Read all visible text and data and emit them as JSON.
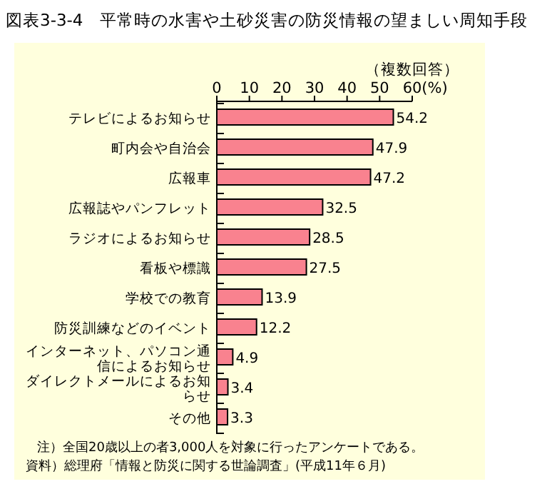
{
  "chart_data": {
    "type": "bar",
    "orientation": "horizontal",
    "title": "図表3-3-4　平常時の水害や土砂災害の防災情報の望ましい周知手段",
    "subtitle": "（複数回答）",
    "categories": [
      "テレビによるお知らせ",
      "町内会や自治会",
      "広報車",
      "広報誌やパンフレット",
      "ラジオによるお知らせ",
      "看板や標識",
      "学校での教育",
      "防災訓練などのイベント",
      "インターネット、パソコン通信によるお知らせ",
      "ダイレクトメールによるお知らせ",
      "その他"
    ],
    "values": [
      54.2,
      47.9,
      47.2,
      32.5,
      28.5,
      27.5,
      13.9,
      12.2,
      4.9,
      3.4,
      3.3
    ],
    "color": "#f9828f",
    "xlim": [
      0,
      60
    ],
    "xticks": [
      0,
      10,
      20,
      30,
      40,
      50,
      {
        "value": 60,
        "label": "60(%)"
      }
    ],
    "data_labels": true,
    "annotations": [
      "注）全国20歳以上の者3,000人を対象に行ったアンケートである。",
      "資料）総理府「情報と防災に関する世論調査」(平成11年６月)"
    ]
  }
}
